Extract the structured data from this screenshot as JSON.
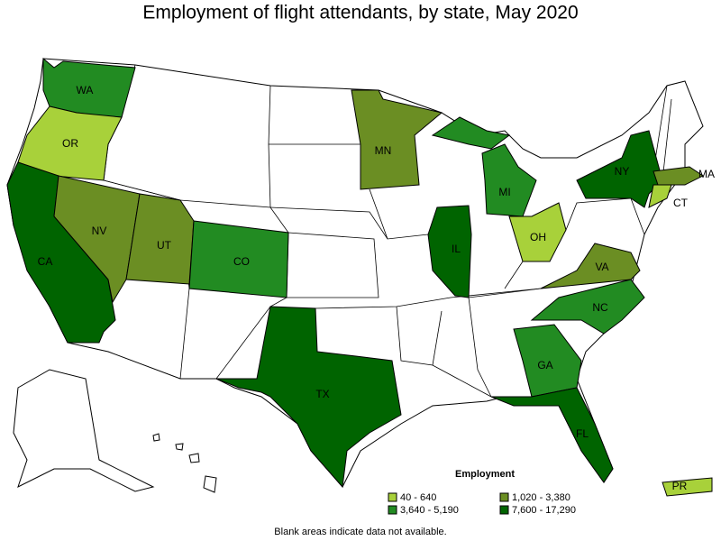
{
  "title": "Employment of flight attendants, by state, May 2020",
  "legend": {
    "title": "Employment",
    "items": [
      {
        "label": "40 - 640",
        "color": "#a8d13a"
      },
      {
        "label": "1,020 - 3,380",
        "color": "#6b8e23"
      },
      {
        "label": "3,640 - 5,190",
        "color": "#228b22"
      },
      {
        "label": "7,600 - 17,290",
        "color": "#006400"
      }
    ]
  },
  "states": [
    {
      "abbr": "WA",
      "color": "#228b22"
    },
    {
      "abbr": "OR",
      "color": "#a8d13a"
    },
    {
      "abbr": "CA",
      "color": "#006400"
    },
    {
      "abbr": "NV",
      "color": "#6b8e23"
    },
    {
      "abbr": "UT",
      "color": "#6b8e23"
    },
    {
      "abbr": "CO",
      "color": "#228b22"
    },
    {
      "abbr": "TX",
      "color": "#006400"
    },
    {
      "abbr": "MN",
      "color": "#6b8e23"
    },
    {
      "abbr": "IL",
      "color": "#006400"
    },
    {
      "abbr": "MI",
      "color": "#228b22"
    },
    {
      "abbr": "OH",
      "color": "#a8d13a"
    },
    {
      "abbr": "NY",
      "color": "#006400"
    },
    {
      "abbr": "MA",
      "color": "#6b8e23"
    },
    {
      "abbr": "CT",
      "color": "#a8d13a"
    },
    {
      "abbr": "VA",
      "color": "#6b8e23"
    },
    {
      "abbr": "NC",
      "color": "#228b22"
    },
    {
      "abbr": "GA",
      "color": "#228b22"
    },
    {
      "abbr": "FL",
      "color": "#006400"
    },
    {
      "abbr": "PR",
      "color": "#a8d13a"
    }
  ],
  "note": "Blank areas indicate data not available."
}
